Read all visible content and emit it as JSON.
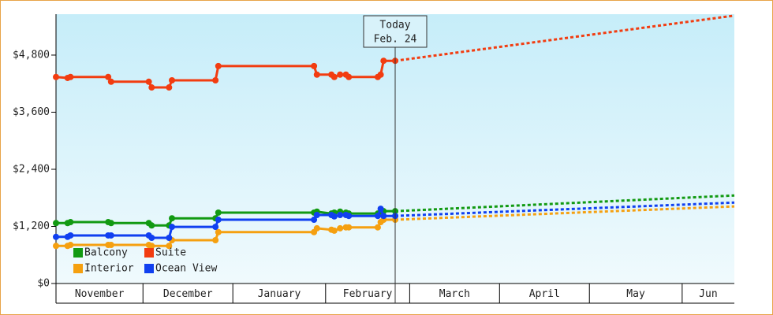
{
  "chart_data": {
    "type": "line",
    "annotation": {
      "title": "Today",
      "date": "Feb. 24",
      "x": 116
    },
    "x": [
      -1,
      3,
      4,
      17,
      18,
      31,
      32,
      38,
      39,
      54,
      55,
      88,
      89,
      94,
      95,
      97,
      99,
      100,
      110,
      111,
      112,
      116
    ],
    "forecast_x": [
      116,
      233
    ],
    "series": [
      {
        "name": "Balcony",
        "color": "#129a12",
        "values": [
          1270,
          1270,
          1290,
          1290,
          1270,
          1270,
          1220,
          1220,
          1370,
          1370,
          1490,
          1490,
          1510,
          1470,
          1490,
          1510,
          1490,
          1470,
          1470,
          1490,
          1520,
          1520
        ],
        "forecast": [
          1520,
          1850
        ]
      },
      {
        "name": "Suite",
        "color": "#f23c10",
        "values": [
          4340,
          4320,
          4340,
          4340,
          4240,
          4240,
          4120,
          4120,
          4270,
          4270,
          4570,
          4570,
          4390,
          4390,
          4340,
          4390,
          4390,
          4340,
          4340,
          4390,
          4680,
          4680
        ],
        "forecast": [
          4680,
          5630
        ]
      },
      {
        "name": "Interior",
        "color": "#f5a010",
        "values": [
          790,
          790,
          810,
          810,
          810,
          810,
          790,
          790,
          910,
          910,
          1080,
          1080,
          1160,
          1130,
          1110,
          1160,
          1180,
          1180,
          1180,
          1290,
          1340,
          1340
        ],
        "forecast": [
          1340,
          1620
        ]
      },
      {
        "name": "Ocean View",
        "color": "#1040f0",
        "values": [
          980,
          980,
          1010,
          1010,
          1010,
          1010,
          960,
          960,
          1190,
          1190,
          1340,
          1340,
          1440,
          1440,
          1410,
          1440,
          1440,
          1420,
          1420,
          1570,
          1420,
          1420
        ],
        "forecast": [
          1420,
          1700
        ]
      }
    ],
    "xlim": [
      -1,
      233
    ],
    "xticks": [
      {
        "value": -1,
        "label": "November"
      },
      {
        "value": 29,
        "label": "December"
      },
      {
        "value": 60,
        "label": "January"
      },
      {
        "value": 92,
        "label": "February"
      },
      {
        "value": 121,
        "label": "March"
      },
      {
        "value": 152,
        "label": "April"
      },
      {
        "value": 183,
        "label": "May"
      },
      {
        "value": 215,
        "label": "Jun"
      }
    ],
    "ylim": [
      0,
      5660
    ],
    "yticks": [
      {
        "value": 0,
        "label": "$0"
      },
      {
        "value": 1200,
        "label": "$1,200"
      },
      {
        "value": 2400,
        "label": "$2,400"
      },
      {
        "value": 3600,
        "label": "$3,600"
      },
      {
        "value": 4800,
        "label": "$4,800"
      }
    ],
    "legend": "bottom-left"
  }
}
